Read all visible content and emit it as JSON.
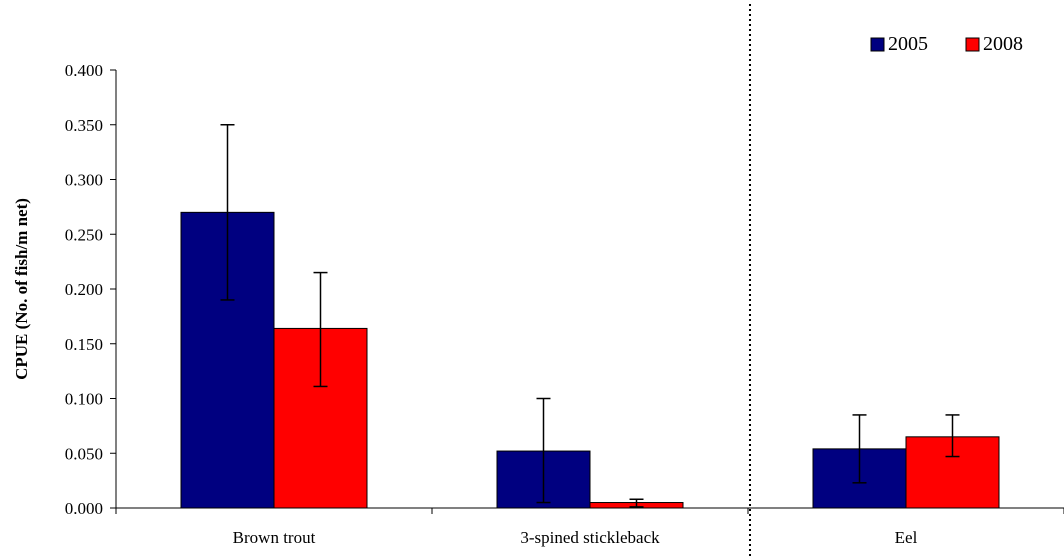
{
  "chart_data": {
    "type": "bar",
    "title": "",
    "xlabel": "",
    "ylabel": "CPUE (No. of fish/m net)",
    "categories": [
      "Brown trout",
      "3-spined stickleback",
      "Eel"
    ],
    "series": [
      {
        "name": "2005",
        "color": "#000080",
        "values": [
          0.27,
          0.052,
          0.054
        ],
        "error_low": [
          0.19,
          0.005,
          0.023
        ],
        "error_high": [
          0.35,
          0.1,
          0.085
        ]
      },
      {
        "name": "2008",
        "color": "#ff0000",
        "values": [
          0.164,
          0.005,
          0.065
        ],
        "error_low": [
          0.111,
          0.001,
          0.047
        ],
        "error_high": [
          0.215,
          0.008,
          0.085
        ]
      }
    ],
    "ylim": [
      0,
      0.4
    ],
    "yticks": [
      "0.000",
      "0.050",
      "0.100",
      "0.150",
      "0.200",
      "0.250",
      "0.300",
      "0.350",
      "0.400"
    ],
    "grid": false,
    "legend_position": "top-right",
    "separator": "dotted vertical line between 3-spined stickleback and Eel"
  }
}
